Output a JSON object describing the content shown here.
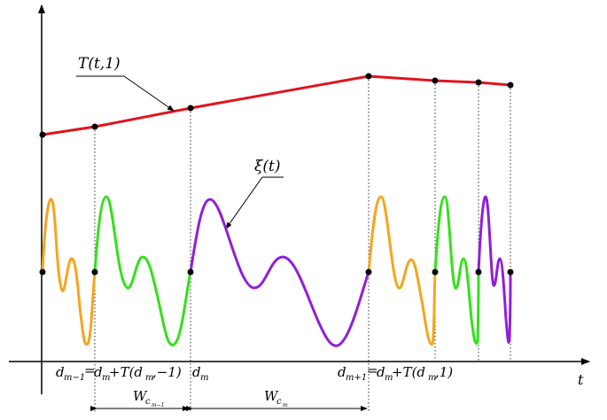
{
  "labels": {
    "T_curve": "T(t,1)",
    "xi_curve": "ξ(t)",
    "axis_t": "t",
    "d_m_minus_1": "d",
    "d_m_minus_1_sub": "m−1",
    "eq1": "=",
    "d_m_plus_T_minus": "d",
    "d_m_plus_T_minus_sub": "m",
    "d_m_plus_T_minus_rest": "+T(d",
    "d_m_plus_T_minus_sub2": "m",
    "d_m_plus_T_minus_tail": ",−1)",
    "d_m": "d",
    "d_m_sub": "m",
    "d_m_plus_1": "d",
    "d_m_plus_1_sub": "m+1",
    "eq2": "=",
    "d_m_plus_T_plus": "d",
    "d_m_plus_T_plus_sub": "m",
    "d_m_plus_T_plus_rest": "+T(d",
    "d_m_plus_T_plus_sub2": "m",
    "d_m_plus_T_plus_tail": ",1)",
    "W1": "W",
    "W1_sub": "c",
    "W1_subsub": "m−1",
    "W2": "W",
    "W2_sub": "c",
    "W2_subsub": "m"
  },
  "colors": {
    "T_line": "#e0141e",
    "orange": "#f5a51e",
    "green": "#34e01a",
    "purple": "#8f1fd9",
    "axis": "#000000"
  }
}
